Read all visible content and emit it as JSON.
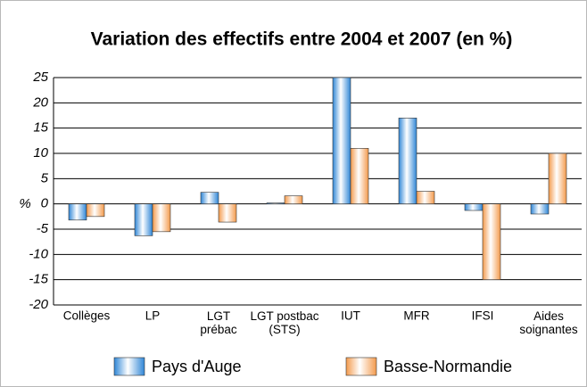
{
  "chart_data": {
    "type": "bar",
    "title": "Variation des effectifs entre 2004 et 2007 (en %)",
    "y_label": "%",
    "categories": [
      "Collèges",
      "LP",
      "LGT\nprébac",
      "LGT postbac\n(STS)",
      "IUT",
      "MFR",
      "IFSI",
      "Aides\nsoignantes"
    ],
    "series": [
      {
        "name": "Pays d'Auge",
        "color": "#2f86d6",
        "values": [
          -3.2,
          -6.3,
          2.3,
          0.2,
          25,
          17,
          -1.3,
          -2
        ]
      },
      {
        "name": "Basse-Normandie",
        "color": "#f39a4c",
        "values": [
          -2.5,
          -5.5,
          -3.6,
          1.6,
          11,
          2.5,
          -15,
          10
        ]
      }
    ],
    "ylim": [
      -20,
      25
    ],
    "yticks": [
      -20,
      -15,
      -10,
      -5,
      0,
      5,
      10,
      15,
      20,
      25
    ],
    "grid": true
  }
}
